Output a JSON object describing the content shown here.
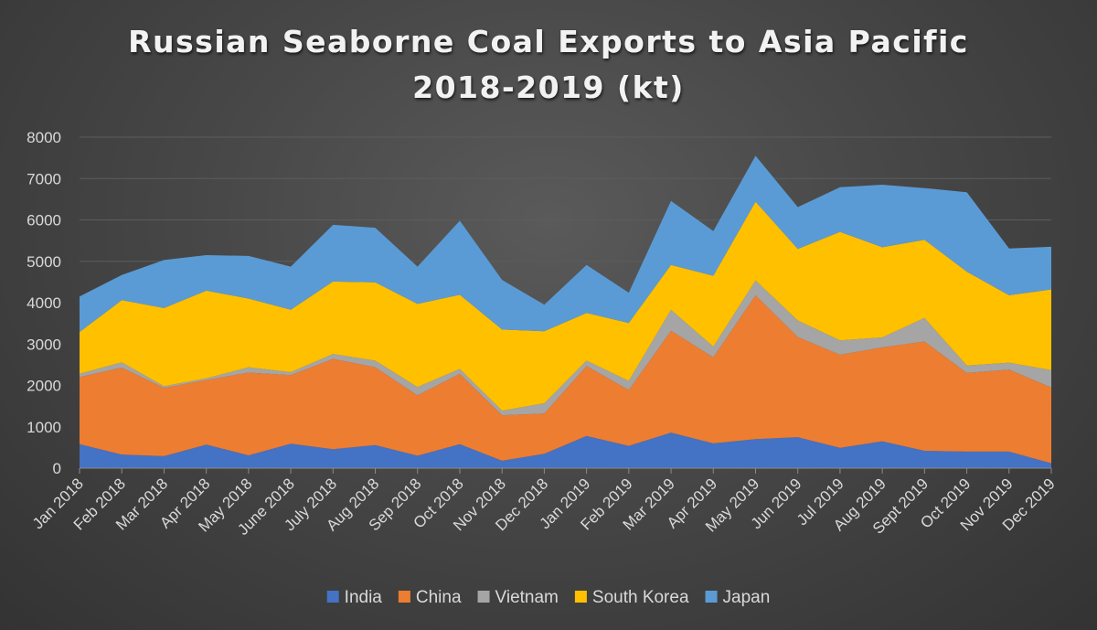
{
  "chart_data": {
    "type": "area",
    "stacked": true,
    "title": "Russian Seaborne Coal Exports to Asia Pacific",
    "subtitle": "2018-2019 (kt)",
    "xlabel": "",
    "ylabel": "",
    "ylim": [
      0,
      8000
    ],
    "yticks": [
      0,
      1000,
      2000,
      3000,
      4000,
      5000,
      6000,
      7000,
      8000
    ],
    "grid": true,
    "legend_position": "bottom",
    "categories": [
      "Jan 2018",
      "Feb 2018",
      "Mar 2018",
      "Apr 2018",
      "May 2018",
      "June 2018",
      "July 2018",
      "Aug 2018",
      "Sep 2018",
      "Oct 2018",
      "Nov 2018",
      "Dec 2018",
      "Jan 2019",
      "Feb 2019",
      "Mar 2019",
      "Apr 2019",
      "May 2019",
      "Jun 2019",
      "Jul 2019",
      "Aug 2019",
      "Sept 2019",
      "Oct 2019",
      "Nov 2019",
      "Dec 2019"
    ],
    "series": [
      {
        "name": "India",
        "color": "#4472c4",
        "values": [
          580,
          330,
          290,
          570,
          310,
          590,
          460,
          560,
          300,
          580,
          180,
          350,
          780,
          540,
          860,
          600,
          700,
          750,
          490,
          650,
          420,
          400,
          400,
          120
        ]
      },
      {
        "name": "China",
        "color": "#ed7d31",
        "values": [
          1620,
          2100,
          1650,
          1560,
          2000,
          1660,
          2180,
          1880,
          1460,
          1700,
          1100,
          970,
          1690,
          1350,
          2460,
          2080,
          3480,
          2420,
          2250,
          2270,
          2640,
          1900,
          1980,
          1830
        ]
      },
      {
        "name": "Vietnam",
        "color": "#a5a5a5",
        "values": [
          80,
          130,
          40,
          40,
          130,
          70,
          120,
          160,
          200,
          120,
          110,
          250,
          130,
          220,
          510,
          260,
          360,
          400,
          350,
          240,
          570,
          180,
          170,
          420
        ]
      },
      {
        "name": "South Korea",
        "color": "#ffc000",
        "values": [
          1010,
          1500,
          1890,
          2120,
          1660,
          1510,
          1750,
          1890,
          2010,
          1790,
          1960,
          1740,
          1150,
          1400,
          1080,
          1710,
          1900,
          1730,
          2620,
          2180,
          1890,
          2270,
          1630,
          1950
        ]
      },
      {
        "name": "Japan",
        "color": "#5b9bd5",
        "values": [
          860,
          610,
          1160,
          860,
          1030,
          1040,
          1370,
          1320,
          900,
          1790,
          1200,
          640,
          1160,
          730,
          1550,
          1080,
          1110,
          1010,
          1080,
          1510,
          1250,
          1920,
          1130,
          1030
        ]
      }
    ]
  }
}
